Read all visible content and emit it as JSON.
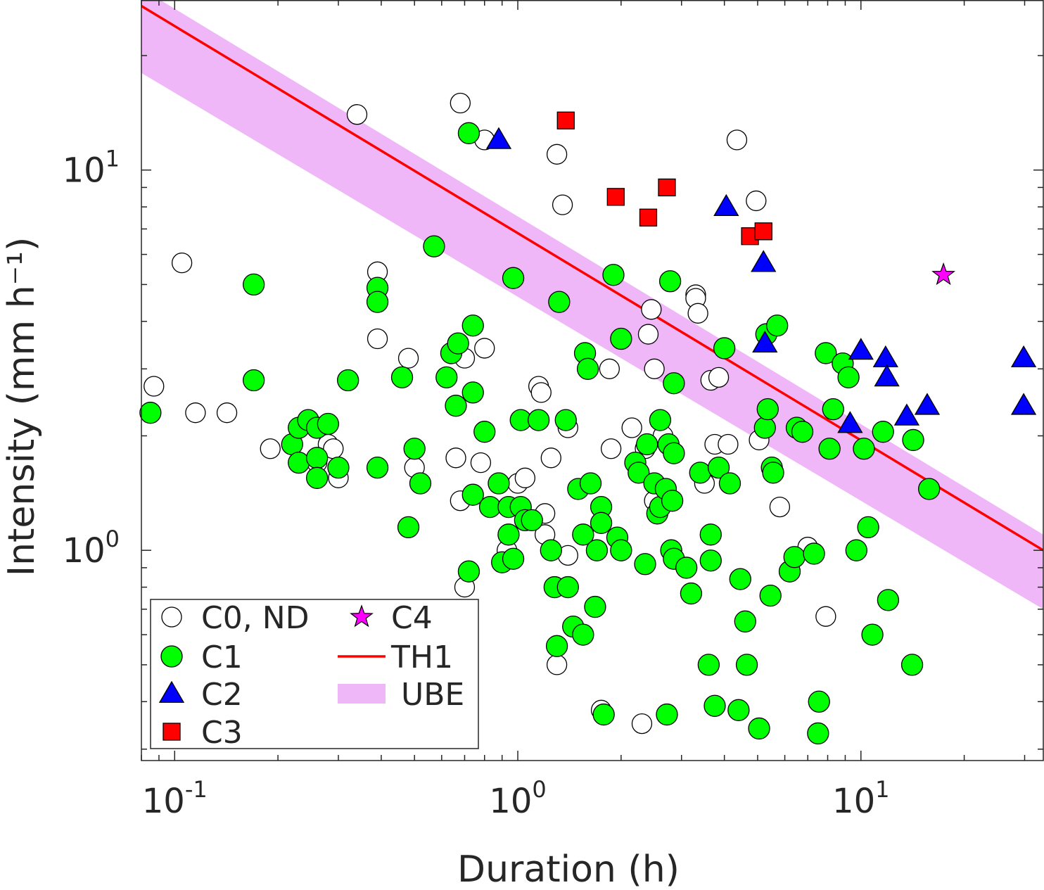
{
  "chart_data": {
    "type": "scatter",
    "title": "",
    "xlabel": "Duration (h)",
    "ylabel": "Intensity (mm h⁻¹)",
    "x_scale": "log",
    "y_scale": "log",
    "xlim": [
      0.08,
      34
    ],
    "ylim": [
      0.28,
      28
    ],
    "x_ticks": [
      {
        "value": 0.1,
        "base": "10",
        "exp": "-1"
      },
      {
        "value": 1,
        "base": "10",
        "exp": "0"
      },
      {
        "value": 10,
        "base": "10",
        "exp": "1"
      }
    ],
    "y_ticks": [
      {
        "value": 1,
        "base": "10",
        "exp": "0"
      },
      {
        "value": 10,
        "base": "10",
        "exp": "1"
      }
    ],
    "grid": false,
    "legend_position": "bottom-left",
    "legend": [
      {
        "label": "C0, ND",
        "marker": "circle-open"
      },
      {
        "label": "C1",
        "marker": "circle"
      },
      {
        "label": "C2",
        "marker": "triangle"
      },
      {
        "label": "C3",
        "marker": "square"
      },
      {
        "label": "C4",
        "marker": "star"
      },
      {
        "label": "TH1",
        "marker": "line"
      },
      {
        "label": "UBE",
        "marker": "band"
      }
    ],
    "colors": {
      "C0": "#ffffff",
      "C1": "#00ff00",
      "C2": "#0000ff",
      "C3": "#ff0000",
      "C4": "#ff00ff",
      "TH1": "#ff0000",
      "UBE": "#efb7f8"
    },
    "series": [
      {
        "name": "C0, ND",
        "marker": "circle-open",
        "points": [
          [
            0.087,
            2.7
          ],
          [
            0.105,
            5.7
          ],
          [
            0.115,
            2.3
          ],
          [
            0.142,
            2.3
          ],
          [
            0.19,
            1.85
          ],
          [
            0.26,
            1.7
          ],
          [
            0.28,
            1.9
          ],
          [
            0.29,
            1.85
          ],
          [
            0.3,
            1.55
          ],
          [
            0.34,
            14.0
          ],
          [
            0.39,
            5.4
          ],
          [
            0.39,
            3.6
          ],
          [
            0.48,
            3.2
          ],
          [
            0.5,
            1.65
          ],
          [
            0.66,
            1.75
          ],
          [
            0.68,
            15.0
          ],
          [
            0.68,
            1.35
          ],
          [
            0.7,
            3.2
          ],
          [
            0.7,
            0.8
          ],
          [
            0.78,
            1.7
          ],
          [
            0.8,
            3.4
          ],
          [
            0.8,
            12.0
          ],
          [
            0.93,
            1.0
          ],
          [
            1.0,
            1.5
          ],
          [
            1.05,
            1.55
          ],
          [
            1.15,
            2.7
          ],
          [
            1.17,
            2.6
          ],
          [
            1.2,
            1.1
          ],
          [
            1.2,
            1.25
          ],
          [
            1.25,
            1.75
          ],
          [
            1.3,
            11.0
          ],
          [
            1.3,
            0.5
          ],
          [
            1.35,
            8.1
          ],
          [
            1.4,
            2.1
          ],
          [
            1.4,
            0.97
          ],
          [
            1.85,
            3.0
          ],
          [
            1.87,
            1.85
          ],
          [
            1.75,
            0.38
          ],
          [
            2.15,
            2.1
          ],
          [
            2.3,
            0.35
          ],
          [
            2.35,
            1.85
          ],
          [
            2.4,
            3.7
          ],
          [
            2.45,
            4.3
          ],
          [
            2.5,
            3.0
          ],
          [
            2.65,
            2.0
          ],
          [
            2.5,
            1.35
          ],
          [
            3.3,
            4.7
          ],
          [
            3.3,
            4.6
          ],
          [
            3.35,
            4.2
          ],
          [
            3.5,
            1.5
          ],
          [
            3.65,
            2.8
          ],
          [
            3.75,
            1.9
          ],
          [
            3.85,
            2.85
          ],
          [
            4.1,
            1.9
          ],
          [
            4.35,
            12.0
          ],
          [
            4.95,
            8.3
          ],
          [
            5.05,
            1.95
          ],
          [
            5.8,
            1.3
          ],
          [
            7.0,
            1.02
          ],
          [
            7.9,
            0.67
          ]
        ]
      },
      {
        "name": "C1",
        "marker": "circle",
        "points": [
          [
            0.085,
            2.3
          ],
          [
            0.17,
            5.0
          ],
          [
            0.17,
            2.8
          ],
          [
            0.22,
            1.9
          ],
          [
            0.23,
            2.1
          ],
          [
            0.23,
            1.7
          ],
          [
            0.245,
            2.2
          ],
          [
            0.26,
            2.1
          ],
          [
            0.26,
            1.75
          ],
          [
            0.26,
            1.55
          ],
          [
            0.28,
            2.15
          ],
          [
            0.3,
            1.65
          ],
          [
            0.32,
            2.8
          ],
          [
            0.39,
            4.9
          ],
          [
            0.39,
            4.5
          ],
          [
            0.39,
            1.65
          ],
          [
            0.46,
            2.85
          ],
          [
            0.48,
            1.15
          ],
          [
            0.5,
            1.85
          ],
          [
            0.52,
            1.5
          ],
          [
            0.57,
            6.3
          ],
          [
            0.62,
            2.85
          ],
          [
            0.64,
            3.3
          ],
          [
            0.66,
            2.4
          ],
          [
            0.67,
            3.5
          ],
          [
            0.72,
            12.5
          ],
          [
            0.72,
            0.88
          ],
          [
            0.74,
            2.6
          ],
          [
            0.74,
            3.9
          ],
          [
            0.74,
            1.4
          ],
          [
            0.8,
            2.05
          ],
          [
            0.83,
            1.3
          ],
          [
            0.88,
            1.5
          ],
          [
            0.9,
            0.93
          ],
          [
            0.94,
            1.1
          ],
          [
            0.94,
            1.3
          ],
          [
            0.97,
            5.2
          ],
          [
            0.97,
            0.95
          ],
          [
            1.02,
            1.3
          ],
          [
            1.02,
            2.2
          ],
          [
            1.05,
            1.2
          ],
          [
            1.1,
            1.2
          ],
          [
            1.15,
            2.2
          ],
          [
            1.25,
            1.0
          ],
          [
            1.28,
            0.8
          ],
          [
            1.3,
            0.56
          ],
          [
            1.32,
            4.5
          ],
          [
            1.38,
            2.2
          ],
          [
            1.4,
            0.8
          ],
          [
            1.45,
            0.63
          ],
          [
            1.5,
            1.45
          ],
          [
            1.55,
            0.6
          ],
          [
            1.55,
            1.1
          ],
          [
            1.57,
            3.3
          ],
          [
            1.6,
            3.0
          ],
          [
            1.63,
            1.5
          ],
          [
            1.68,
            0.71
          ],
          [
            1.7,
            1.0
          ],
          [
            1.75,
            1.3
          ],
          [
            1.75,
            1.18
          ],
          [
            1.78,
            0.37
          ],
          [
            1.9,
            5.3
          ],
          [
            1.95,
            1.08
          ],
          [
            2.0,
            3.6
          ],
          [
            2.0,
            1.0
          ],
          [
            2.2,
            1.7
          ],
          [
            2.25,
            1.6
          ],
          [
            2.38,
            1.9
          ],
          [
            2.35,
            0.92
          ],
          [
            2.5,
            1.5
          ],
          [
            2.55,
            1.25
          ],
          [
            2.6,
            1.3
          ],
          [
            2.6,
            2.2
          ],
          [
            2.7,
            1.45
          ],
          [
            2.72,
            0.37
          ],
          [
            2.75,
            1.9
          ],
          [
            2.78,
            5.1
          ],
          [
            2.8,
            1.0
          ],
          [
            2.82,
            1.35
          ],
          [
            2.85,
            2.75
          ],
          [
            2.85,
            0.95
          ],
          [
            2.85,
            1.8
          ],
          [
            3.1,
            0.9
          ],
          [
            3.2,
            0.77
          ],
          [
            3.4,
            1.6
          ],
          [
            3.6,
            0.5
          ],
          [
            3.65,
            0.94
          ],
          [
            3.65,
            1.1
          ],
          [
            3.75,
            0.39
          ],
          [
            3.85,
            1.65
          ],
          [
            4.0,
            3.4
          ],
          [
            4.15,
            1.5
          ],
          [
            4.4,
            0.38
          ],
          [
            4.45,
            0.84
          ],
          [
            4.6,
            0.65
          ],
          [
            4.65,
            0.5
          ],
          [
            5.05,
            0.34
          ],
          [
            5.25,
            2.1
          ],
          [
            5.3,
            3.7
          ],
          [
            5.35,
            2.35
          ],
          [
            5.45,
            0.76
          ],
          [
            5.5,
            1.65
          ],
          [
            5.55,
            1.6
          ],
          [
            5.7,
            3.9
          ],
          [
            6.2,
            0.88
          ],
          [
            6.4,
            0.96
          ],
          [
            6.5,
            2.1
          ],
          [
            6.75,
            2.05
          ],
          [
            7.3,
            0.98
          ],
          [
            7.5,
            0.33
          ],
          [
            7.55,
            0.4
          ],
          [
            7.9,
            3.3
          ],
          [
            8.1,
            1.85
          ],
          [
            8.3,
            2.35
          ],
          [
            8.85,
            3.1
          ],
          [
            9.2,
            2.85
          ],
          [
            9.7,
            1.0
          ],
          [
            10.2,
            1.85
          ],
          [
            10.5,
            1.15
          ],
          [
            10.8,
            0.6
          ],
          [
            11.6,
            2.05
          ],
          [
            12.0,
            0.74
          ],
          [
            14.1,
            0.5
          ],
          [
            14.2,
            1.95
          ],
          [
            15.8,
            1.45
          ]
        ]
      },
      {
        "name": "C2",
        "marker": "triangle",
        "points": [
          [
            0.88,
            12.0
          ],
          [
            4.05,
            8.0
          ],
          [
            5.2,
            5.7
          ],
          [
            5.25,
            3.5
          ],
          [
            9.3,
            2.15
          ],
          [
            10.0,
            3.35
          ],
          [
            11.8,
            3.2
          ],
          [
            11.9,
            2.85
          ],
          [
            13.6,
            2.25
          ],
          [
            15.6,
            2.4
          ],
          [
            29.8,
            3.2
          ],
          [
            29.8,
            2.4
          ]
        ]
      },
      {
        "name": "C3",
        "marker": "square",
        "points": [
          [
            1.38,
            13.5
          ],
          [
            1.93,
            8.5
          ],
          [
            2.4,
            7.5
          ],
          [
            2.72,
            9.0
          ],
          [
            4.75,
            6.7
          ],
          [
            5.2,
            6.9
          ]
        ]
      },
      {
        "name": "C4",
        "marker": "star",
        "points": [
          [
            17.4,
            5.3
          ]
        ]
      },
      {
        "name": "TH1",
        "marker": "line",
        "points": [
          [
            0.08,
            27.0
          ],
          [
            34,
            1.0
          ]
        ]
      },
      {
        "name": "UBE",
        "marker": "band",
        "upper": [
          [
            0.08,
            30.0
          ],
          [
            34,
            1.1
          ]
        ],
        "lower": [
          [
            0.08,
            18.0
          ],
          [
            34,
            0.7
          ]
        ]
      }
    ]
  }
}
